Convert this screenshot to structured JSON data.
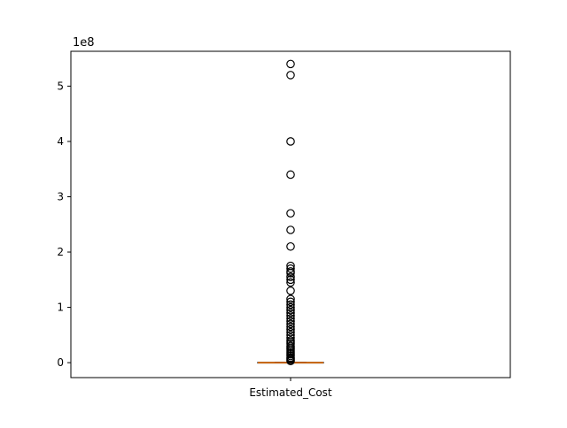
{
  "chart_data": {
    "type": "box",
    "title": "",
    "xlabel": "",
    "ylabel": "",
    "y_offset_label": "1e8",
    "categories": [
      "Estimated_Cost"
    ],
    "ylim": [
      -0.27,
      5.63
    ],
    "y_ticks": [
      {
        "value": 0,
        "label": "0"
      },
      {
        "value": 1,
        "label": "1"
      },
      {
        "value": 2,
        "label": "2"
      },
      {
        "value": 3,
        "label": "3"
      },
      {
        "value": 4,
        "label": "4"
      },
      {
        "value": 5,
        "label": "5"
      }
    ],
    "grid": false,
    "box": {
      "q1": 0.0,
      "median": 0.0,
      "q3": 0.0,
      "whisker_low": 0.0,
      "whisker_high": 0.01
    },
    "outliers": [
      5.4,
      5.2,
      4.0,
      3.4,
      2.7,
      2.4,
      2.1,
      1.75,
      1.7,
      1.65,
      1.62,
      1.55,
      1.5,
      1.45,
      1.3,
      1.15,
      1.1,
      1.05,
      1.0,
      0.95,
      0.9,
      0.85,
      0.8,
      0.75,
      0.7,
      0.65,
      0.6,
      0.55,
      0.5,
      0.45,
      0.4,
      0.37,
      0.34,
      0.3,
      0.27,
      0.24,
      0.21,
      0.18,
      0.15,
      0.12,
      0.09,
      0.07,
      0.05,
      0.03
    ],
    "colors": {
      "box": "#000000",
      "median": "#ff7f0e",
      "outlier_edge": "#000000"
    }
  }
}
